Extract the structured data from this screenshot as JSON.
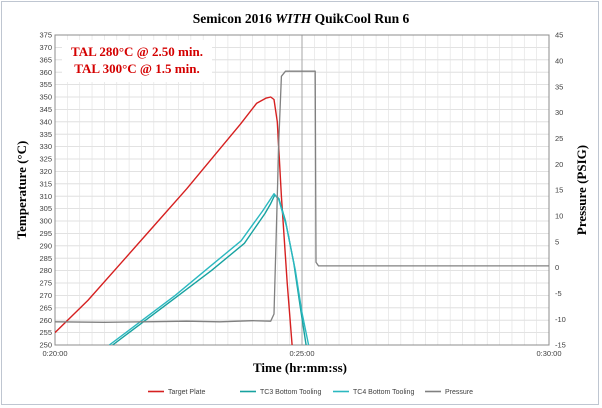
{
  "chart_data": {
    "type": "line",
    "title": "Semicon 2016 WITH QuikCool Run 6",
    "title_parts": [
      "Semicon 2016 ",
      "WITH",
      " QuikCool Run 6"
    ],
    "xlabel": "Time (hr:mm:ss)",
    "ylabel": "Temperature (°C)",
    "y2label": "Pressure (PSIG)",
    "xlim": [
      0,
      600
    ],
    "x_ticks": [
      {
        "value": 0,
        "label": "0:20:00"
      },
      {
        "value": 300,
        "label": "0:25:00"
      },
      {
        "value": 600,
        "label": "0:30:00"
      }
    ],
    "ylim": [
      250,
      375
    ],
    "y_ticks": [
      250,
      255,
      260,
      265,
      270,
      275,
      280,
      285,
      290,
      295,
      300,
      305,
      310,
      315,
      320,
      325,
      330,
      335,
      340,
      345,
      350,
      355,
      360,
      365,
      370,
      375
    ],
    "y2lim": [
      -15,
      45
    ],
    "y2_ticks": [
      -15,
      -10,
      -5,
      0,
      5,
      10,
      15,
      20,
      25,
      30,
      35,
      40,
      45
    ],
    "grid": true,
    "legend_position": "bottom",
    "annotations": [
      "TAL 280°C @ 2.50 min.",
      "TAL 300°C @ 1.5 min."
    ],
    "series": [
      {
        "name": "Target Plate",
        "color": "#d62020",
        "axis": "left",
        "x": [
          0,
          40,
          80,
          120,
          160,
          200,
          225,
          245,
          256,
          262,
          266,
          270,
          275,
          282,
          288
        ],
        "y": [
          255,
          268,
          283,
          298,
          313,
          329,
          339,
          347.5,
          349.5,
          350,
          349,
          340,
          310,
          275,
          250
        ]
      },
      {
        "name": "TC3 Bottom Tooling",
        "color": "#17a2a0",
        "axis": "left",
        "x": [
          70,
          110,
          150,
          190,
          230,
          255,
          262,
          267,
          272,
          280,
          290,
          298,
          305
        ],
        "y": [
          250,
          260,
          270,
          280,
          291,
          303,
          307,
          310.5,
          309,
          300,
          283,
          265,
          250
        ]
      },
      {
        "name": "TC4 Bottom Tooling",
        "color": "#2bb8c0",
        "axis": "left",
        "x": [
          66,
          106,
          146,
          186,
          226,
          252,
          262,
          266,
          272,
          281,
          292,
          300,
          308
        ],
        "y": [
          250,
          260,
          270,
          281,
          292,
          304,
          309,
          311,
          308.5,
          298,
          280,
          263,
          250
        ]
      },
      {
        "name": "Pressure",
        "color": "#808080",
        "axis": "right",
        "x": [
          0,
          60,
          110,
          160,
          200,
          240,
          262,
          266,
          272,
          275,
          280,
          300,
          310,
          316,
          317,
          320,
          360,
          400,
          440,
          500,
          560,
          600
        ],
        "y": [
          -10.5,
          -10.6,
          -10.5,
          -10.4,
          -10.5,
          -10.3,
          -10.4,
          -9,
          25,
          37,
          38,
          38,
          38,
          38,
          1,
          0.3,
          0.3,
          0.3,
          0.3,
          0.3,
          0.3,
          0.3
        ]
      }
    ]
  }
}
